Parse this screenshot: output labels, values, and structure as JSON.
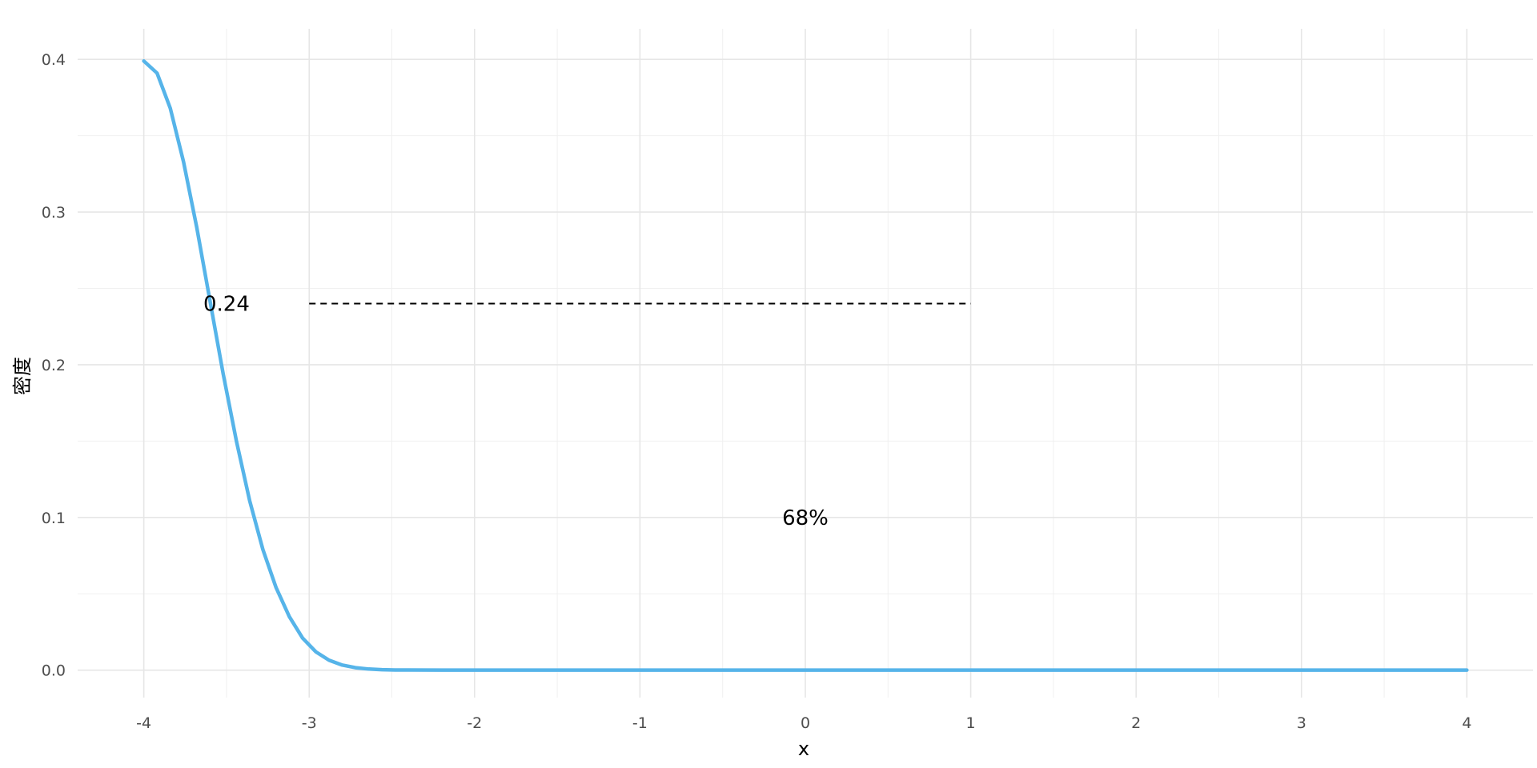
{
  "chart_data": {
    "type": "line",
    "title": "",
    "xlabel": "x",
    "ylabel": "密度",
    "xlim": [
      -4.4,
      4.4
    ],
    "ylim": [
      -0.018,
      0.42
    ],
    "x_ticks": [
      -4,
      -3,
      -2,
      -1,
      0,
      1,
      2,
      3,
      4
    ],
    "x_tick_labels": [
      "-4",
      "-3",
      "-2",
      "-1",
      "0",
      "1",
      "2",
      "3",
      "4"
    ],
    "y_ticks": [
      0.0,
      0.1,
      0.2,
      0.3,
      0.4
    ],
    "y_tick_labels": [
      "0.0",
      "0.1",
      "0.2",
      "0.3",
      "0.4"
    ],
    "grid": true,
    "series": [
      {
        "color": "#56B4E9",
        "x": [
          -4,
          -3.92,
          -3.84,
          -3.76,
          -3.68,
          -3.6,
          -3.52,
          -3.44,
          -3.36,
          -3.28,
          -3.2,
          -3.12,
          -3.04,
          -2.96,
          -2.88,
          -2.8,
          -2.72,
          -2.64,
          -2.56,
          -2.48,
          -2.4,
          -2.2,
          -2.0,
          -1.0,
          0,
          1,
          2,
          3,
          4
        ],
        "y": [
          0.3989,
          0.391,
          0.368,
          0.333,
          0.29,
          0.242,
          0.194,
          0.15,
          0.111,
          0.079,
          0.054,
          0.035,
          0.021,
          0.012,
          0.0065,
          0.0033,
          0.0016,
          0.0007,
          0.0003,
          0.0001,
          5e-05,
          1e-05,
          0.0,
          0.0,
          0.0,
          0.0,
          0.0,
          0.0,
          0.0
        ]
      }
    ],
    "annotations": {
      "hline": {
        "x_start": -3,
        "x_end": 1,
        "y": 0.24,
        "style": "dashed",
        "color": "#000000"
      },
      "labels": [
        {
          "text": "0.24",
          "x": -3.5,
          "y": 0.24
        },
        {
          "text": "68%",
          "x": 0,
          "y": 0.1
        }
      ]
    }
  }
}
